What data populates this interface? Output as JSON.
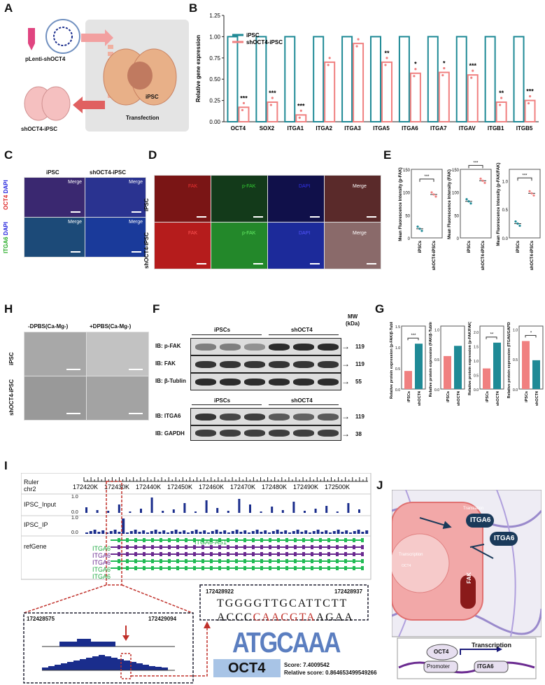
{
  "labels": {
    "A": "A",
    "B": "B",
    "C": "C",
    "D": "D",
    "E": "E",
    "F": "F",
    "G": "G",
    "H": "H",
    "I": "I",
    "J": "J"
  },
  "panelA": {
    "plasmid": "pLenti-shOCT4",
    "cell": "iPSC",
    "kd": "shOCT4-iPSC",
    "step": "Transfection"
  },
  "colors": {
    "teal": "#1f8a96",
    "salmon": "#f08080",
    "navy": "#1a2d8c",
    "green": "#22bb55",
    "purple": "#6a2a90",
    "red": "#c0302a"
  },
  "chart_data": [
    {
      "type": "bar",
      "categories": [
        "OCT4",
        "SOX2",
        "ITGA1",
        "ITGA2",
        "ITGA3",
        "ITGA5",
        "ITGA6",
        "ITGA7",
        "ITGAV",
        "ITGB1",
        "ITGB5"
      ],
      "series": [
        {
          "name": "iPSC",
          "values": [
            1,
            1,
            1,
            1,
            1,
            1,
            1,
            1,
            1,
            1,
            1
          ]
        },
        {
          "name": "shOCT4-iPSC",
          "values": [
            0.17,
            0.23,
            0.08,
            0.7,
            0.92,
            0.7,
            0.57,
            0.58,
            0.55,
            0.23,
            0.25
          ]
        }
      ],
      "signif": [
        "***",
        "***",
        "***",
        "",
        "",
        "**",
        "*",
        "*",
        "***",
        "**",
        "***"
      ],
      "ylabel": "Relative gene expression",
      "ylim": [
        0,
        1.25
      ],
      "yticks": [
        "0.00",
        "0.25",
        "0.50",
        "0.75",
        "1.00",
        "1.25"
      ],
      "legend": "top-left"
    },
    {
      "type": "scatter",
      "ylabel": "Mean Fluorescence Intensity (p-FAK)",
      "categories": [
        "iPSCs",
        "shOCT4-iPSCs"
      ],
      "means": [
        20,
        95
      ],
      "yticks": [
        "0",
        "50",
        "100",
        "150"
      ],
      "ylim": [
        0,
        150
      ],
      "signif": "***"
    },
    {
      "type": "scatter",
      "ylabel": "Mean Fluorescence Intensity (FAK)",
      "categories": [
        "iPSCs",
        "shOCT4-iPSCs"
      ],
      "means": [
        80,
        125
      ],
      "yticks": [
        "0",
        "50",
        "100",
        "150"
      ],
      "ylim": [
        0,
        150
      ],
      "signif": "***"
    },
    {
      "type": "scatter",
      "ylabel": "Mean Fluorescence Intensity (p-FAK/FAK)",
      "categories": [
        "iPSCs",
        "shOCT4-iPSCs"
      ],
      "means": [
        0.25,
        0.78
      ],
      "yticks": [
        "0.0",
        "0.5",
        "1.0"
      ],
      "ylim": [
        0,
        1.2
      ],
      "signif": "***"
    },
    {
      "type": "bar",
      "ylabel": "Relative protein expression (p-FAK/β-Tublin)",
      "categories": [
        "iPSCs",
        "shOCT4"
      ],
      "values": [
        0.43,
        1.08
      ],
      "yticks": [
        "0.0",
        "0.5",
        "1.0",
        "1.5"
      ],
      "ylim": [
        0,
        1.5
      ],
      "signif": "***"
    },
    {
      "type": "bar",
      "ylabel": "Relative protein expression (FAK/β-Tublin)",
      "categories": [
        "iPSCs",
        "shOCT4"
      ],
      "values": [
        0.55,
        0.72
      ],
      "yticks": [
        "0.0",
        "0.5",
        "1.0"
      ],
      "ylim": [
        0,
        1.05
      ],
      "signif": ""
    },
    {
      "type": "bar",
      "ylabel": "Relative protein expression (p-FAK/FAK)",
      "categories": [
        "iPSCs",
        "shOCT4"
      ],
      "values": [
        0.72,
        1.62
      ],
      "yticks": [
        "0.0",
        "0.5",
        "1.0",
        "1.5",
        "2.0"
      ],
      "ylim": [
        0,
        2.2
      ],
      "signif": "**"
    },
    {
      "type": "bar",
      "ylabel": "Relative protein expression (ITGA6/GAPDH)",
      "categories": [
        "iPSCs",
        "shOCT4"
      ],
      "values": [
        0.8,
        0.48
      ],
      "yticks": [
        "0.0",
        "0.5",
        "1.0"
      ],
      "ylim": [
        0,
        1.05
      ],
      "signif": "*"
    }
  ],
  "panelC": {
    "col1": "iPSC",
    "col2": "shOCT4-iPSC",
    "merge": "Merge",
    "row1a": "OCT4",
    "row1b": "DAPI",
    "row2a": "ITGA6",
    "row2b": "DAPI"
  },
  "panelD": {
    "fak": "FAK",
    "pfak": "p-FAK",
    "dapi": "DAPI",
    "merge": "Merge",
    "row1": "iPSC",
    "row2": "shOCT4-iPSC"
  },
  "panelH": {
    "col1": "-DPBS(Ca-Mg-)",
    "col2": "+DPBS(Ca-Mg-)",
    "row1": "iPSC",
    "row2": "shOCT4-iPSC"
  },
  "panelF": {
    "g1": "iPSCs",
    "g2": "shOCT4",
    "mw": "MW",
    "kda": "(kDa)",
    "ib": [
      "IB: p-FAK",
      "IB: FAK",
      "IB: β-Tublin",
      "IB: ITGA6",
      "IB: GAPDH"
    ],
    "mws": [
      "119",
      "119",
      "55",
      "119",
      "38"
    ]
  },
  "panelI": {
    "ruler": "Ruler",
    "chr": "chr2",
    "ticks": [
      "172420K",
      "172430K",
      "172440K",
      "172450K",
      "172460K",
      "172470K",
      "172480K",
      "172490K",
      "172500K"
    ],
    "input": "IPSC_Input",
    "ip": "IPSC_IP",
    "ref": "refGene",
    "y1": "1.0",
    "y0": "0.0",
    "genes": [
      "ITGA6",
      "ITGA6",
      "ITGA6",
      "ITGA6",
      "ITGA6"
    ],
    "as1": "ITGA6-AS1",
    "zl": "172428575",
    "zr": "172429094",
    "sl": "172428922",
    "sr": "172428937",
    "s1": "TGGGGTTGCATTCTT",
    "s2a": "ACCC",
    "s2b": "CAACGTA",
    "s2c": "AGAA",
    "logo": "ATGCAAA",
    "motif": "OCT4",
    "score": "Score: 7.4009542",
    "rscore": "Relative score: 0.864653499549266"
  },
  "panelJ": {
    "translation": "Translation",
    "transcription": "Transcription",
    "itga6": "ITGA6",
    "fak": "FAK",
    "oct4": "OCT4",
    "promoter": "Promoter"
  }
}
